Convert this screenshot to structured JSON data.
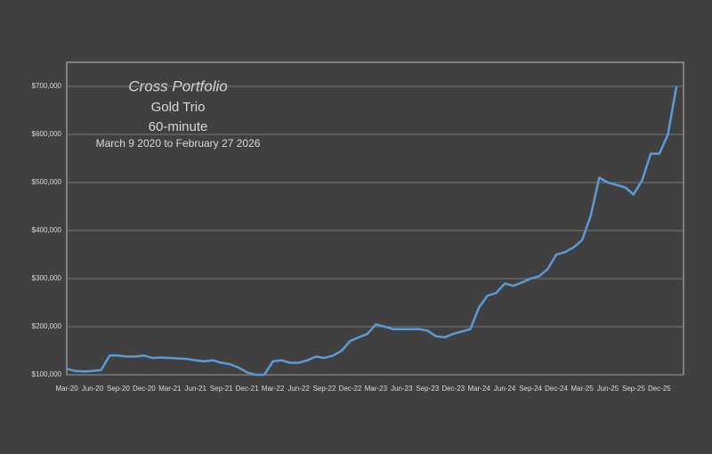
{
  "chart_data": {
    "type": "line",
    "title": "Cross Portfolio",
    "subtitles": [
      "Gold Trio",
      "60-minute",
      "March 9 2020 to February 27 2026"
    ],
    "categories": [
      "Mar-20",
      null,
      null,
      "Jun-20",
      null,
      null,
      "Sep-20",
      null,
      null,
      "Dec-20",
      null,
      null,
      "Mar-21",
      null,
      null,
      "Jun-21",
      null,
      null,
      "Sep-21",
      null,
      null,
      "Dec-21",
      null,
      null,
      "Mar-22",
      null,
      null,
      "Jun-22",
      null,
      null,
      "Sep-22",
      null,
      null,
      "Dec-22",
      null,
      null,
      "Mar-23",
      null,
      null,
      "Jun-23",
      null,
      null,
      "Sep-23",
      null,
      null,
      "Dec-23",
      null,
      null,
      "Mar-24",
      null,
      null,
      "Jun-24",
      null,
      null,
      "Sep-24",
      null,
      null,
      "Dec-24",
      null,
      null,
      "Mar-25",
      null,
      null,
      "Jun-25",
      null,
      null,
      "Sep-25",
      null,
      null,
      "Dec-25",
      null,
      null
    ],
    "series": [
      {
        "color": "#5b9bd5",
        "values": [
          112000,
          108000,
          107000,
          108000,
          110000,
          140000,
          140000,
          138000,
          138000,
          140000,
          135000,
          136000,
          135000,
          134000,
          133000,
          130000,
          128000,
          130000,
          125000,
          122000,
          115000,
          105000,
          100000,
          100000,
          128000,
          130000,
          125000,
          125000,
          130000,
          138000,
          135000,
          140000,
          150000,
          170000,
          178000,
          185000,
          205000,
          200000,
          195000,
          195000,
          195000,
          195000,
          192000,
          180000,
          178000,
          185000,
          190000,
          195000,
          240000,
          265000,
          270000,
          290000,
          285000,
          292000,
          300000,
          305000,
          320000,
          350000,
          355000,
          365000,
          380000,
          430000,
          510000,
          500000,
          495000,
          490000,
          475000,
          505000,
          560000,
          560000,
          600000,
          700000
        ]
      }
    ],
    "ylim": [
      100000,
      750000
    ],
    "yticks": [
      {
        "value": 100000,
        "label": "$100,000"
      },
      {
        "value": 200000,
        "label": "$200,000"
      },
      {
        "value": 300000,
        "label": "$300,000"
      },
      {
        "value": 400000,
        "label": "$400,000"
      },
      {
        "value": 500000,
        "label": "$500,000"
      },
      {
        "value": 600000,
        "label": "$600,000"
      },
      {
        "value": 700000,
        "label": "$700,000"
      }
    ],
    "grid": true
  }
}
